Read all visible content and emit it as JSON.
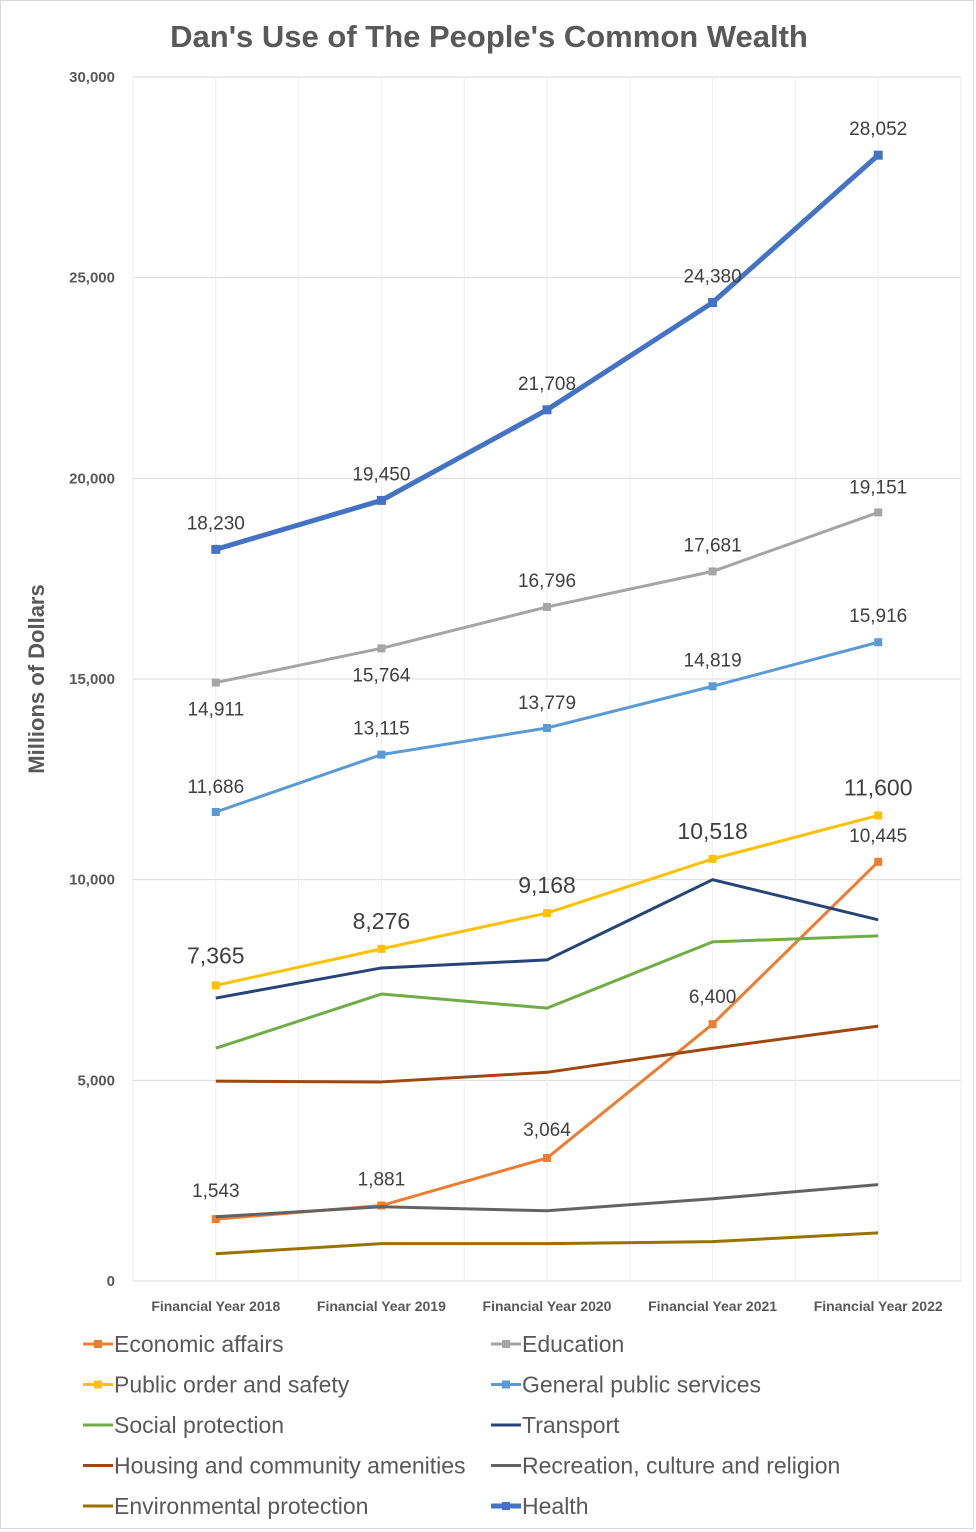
{
  "chart_data": {
    "type": "line",
    "title": "Dan's Use of The People's Common Wealth",
    "ylabel": "Millions of Dollars",
    "xlabel": "",
    "ylim": [
      0,
      30000
    ],
    "yticks": [
      0,
      5000,
      10000,
      15000,
      20000,
      25000,
      30000
    ],
    "ytick_labels": [
      "0",
      "5,000",
      "10,000",
      "15,000",
      "20,000",
      "25,000",
      "30,000"
    ],
    "grid": "horizontal and vertical",
    "legend_position": "bottom",
    "categories": [
      "Financial Year 2018",
      "Financial Year 2019",
      "Financial Year 2020",
      "Financial Year 2021",
      "Financial Year 2022"
    ],
    "series": [
      {
        "name": "Economic affairs",
        "color": "#ED7D31",
        "marker": true,
        "values": [
          1543,
          1881,
          3064,
          6400,
          10445
        ],
        "labels": [
          "1,543",
          "1,881",
          "3,064",
          "6,400",
          "10,445"
        ]
      },
      {
        "name": "Education",
        "color": "#A5A5A5",
        "marker": true,
        "values": [
          14911,
          15764,
          16796,
          17681,
          19151
        ],
        "labels": [
          "14,911",
          "15,764",
          "16,796",
          "17,681",
          "19,151"
        ]
      },
      {
        "name": "Public order and safety",
        "color": "#FFC000",
        "marker": true,
        "values": [
          7365,
          8276,
          9168,
          10518,
          11600
        ],
        "labels": [
          "7,365",
          "8,276",
          "9,168",
          "10,518",
          "11,600"
        ]
      },
      {
        "name": "General public services",
        "color": "#5B9BD5",
        "marker": true,
        "values": [
          11686,
          13115,
          13779,
          14819,
          15916
        ],
        "labels": [
          "11,686",
          "13,115",
          "13,779",
          "14,819",
          "15,916"
        ]
      },
      {
        "name": "Social protection",
        "color": "#70AD47",
        "marker": false,
        "values": [
          5800,
          7150,
          6800,
          8450,
          8600
        ]
      },
      {
        "name": "Transport",
        "color": "#264478",
        "marker": false,
        "values": [
          7050,
          7800,
          8000,
          10000,
          9000
        ]
      },
      {
        "name": "Housing and community amenities",
        "color": "#9E480E",
        "marker": false,
        "values": [
          4980,
          4960,
          5200,
          5800,
          6350
        ]
      },
      {
        "name": "Recreation, culture and religion",
        "color": "#636363",
        "marker": false,
        "values": [
          1600,
          1850,
          1750,
          2050,
          2400
        ]
      },
      {
        "name": "Environmental protection",
        "color": "#997300",
        "marker": false,
        "values": [
          680,
          930,
          930,
          980,
          1200
        ]
      },
      {
        "name": "Health",
        "color": "#4472C4",
        "marker": true,
        "values": [
          18230,
          19450,
          21708,
          24380,
          28052
        ],
        "labels": [
          "18,230",
          "19,450",
          "21,708",
          "24,380",
          "28,052"
        ]
      }
    ]
  }
}
